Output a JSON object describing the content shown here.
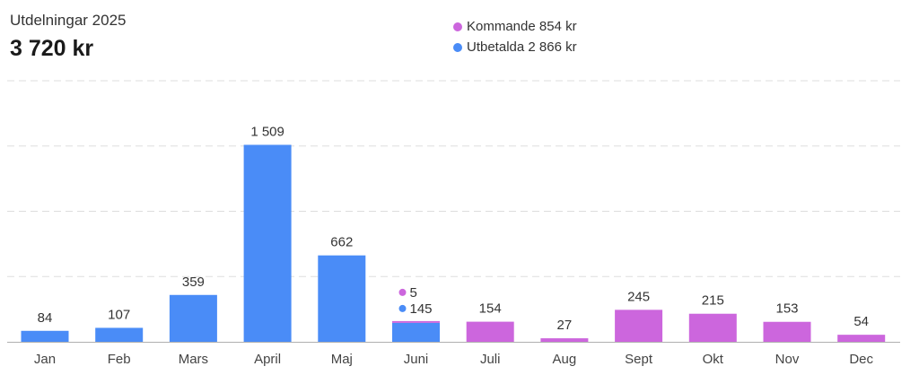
{
  "header": {
    "title": "Utdelningar 2025",
    "total": "3 720 kr"
  },
  "legend": [
    {
      "label": "Kommande 854 kr",
      "color": "#cc66dd"
    },
    {
      "label": "Utbetalda 2 866 kr",
      "color": "#4a8cf7"
    }
  ],
  "chart_data": {
    "type": "bar",
    "stacked": true,
    "categories": [
      "Jan",
      "Feb",
      "Mars",
      "April",
      "Maj",
      "Juni",
      "Juli",
      "Aug",
      "Sept",
      "Okt",
      "Nov",
      "Dec"
    ],
    "series": [
      {
        "name": "Utbetalda",
        "color": "#4a8cf7",
        "values": [
          84,
          107,
          359,
          1509,
          662,
          145,
          0,
          0,
          0,
          0,
          0,
          0
        ]
      },
      {
        "name": "Kommande",
        "color": "#cc66dd",
        "values": [
          0,
          0,
          0,
          0,
          0,
          5,
          154,
          27,
          245,
          215,
          153,
          54
        ]
      }
    ],
    "data_labels": [
      "84",
      "107",
      "359",
      "1 509",
      "662",
      "",
      "154",
      "27",
      "245",
      "215",
      "153",
      "54"
    ],
    "split_labels": {
      "index": 5,
      "upper": "5",
      "lower": "145"
    },
    "ylim": [
      0,
      2000
    ],
    "grid": true,
    "legend_position": "top-center"
  }
}
